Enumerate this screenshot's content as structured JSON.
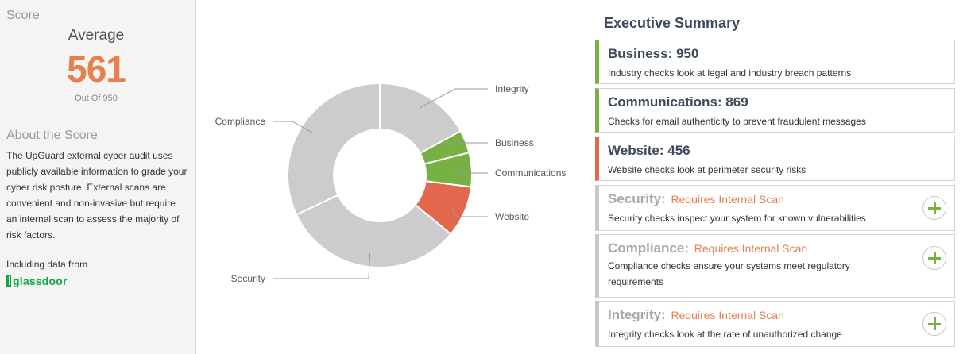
{
  "score": {
    "label": "Score",
    "rating": "Average",
    "value": "561",
    "out_of": "Out Of 950",
    "value_color": "#e5814e"
  },
  "about": {
    "title": "About the Score",
    "text": "The UpGuard external cyber audit uses publicly available information to grade your cyber risk posture. External scans are convenient and non-invasive but require an internal scan to assess the majority of risk factors.",
    "data_from": "Including data from",
    "partner": "glassdoor"
  },
  "chart_data": {
    "type": "pie",
    "donut": true,
    "title": "",
    "slices": [
      {
        "label": "Integrity",
        "value": 17,
        "color": "#cccccc"
      },
      {
        "label": "Business",
        "value": 4,
        "color": "#78b043"
      },
      {
        "label": "Communications",
        "value": 6,
        "color": "#78b043"
      },
      {
        "label": "Website",
        "value": 9,
        "color": "#e2674d"
      },
      {
        "label": "Security",
        "value": 32,
        "color": "#cccccc"
      },
      {
        "label": "Compliance",
        "value": 32,
        "color": "#cccccc"
      }
    ]
  },
  "summary": {
    "title": "Executive Summary",
    "cards": [
      {
        "title": "Business: 950",
        "status": "",
        "desc": "Industry checks look at legal and industry breach patterns"
      },
      {
        "title": "Communications: 869",
        "status": "",
        "desc": "Checks for email authenticity to prevent fraudulent messages"
      },
      {
        "title": "Website: 456",
        "status": "",
        "desc": "Website checks look at perimeter security risks"
      },
      {
        "title": "Security:",
        "status": "Requires Internal Scan",
        "desc": "Security checks inspect your system for known vulnerabilities"
      },
      {
        "title": "Compliance:",
        "status": "Requires Internal Scan",
        "desc": "Compliance checks ensure your systems meet regulatory requirements"
      },
      {
        "title": "Integrity:",
        "status": "Requires Internal Scan",
        "desc": "Integrity checks look at the rate of unauthorized change"
      }
    ]
  }
}
